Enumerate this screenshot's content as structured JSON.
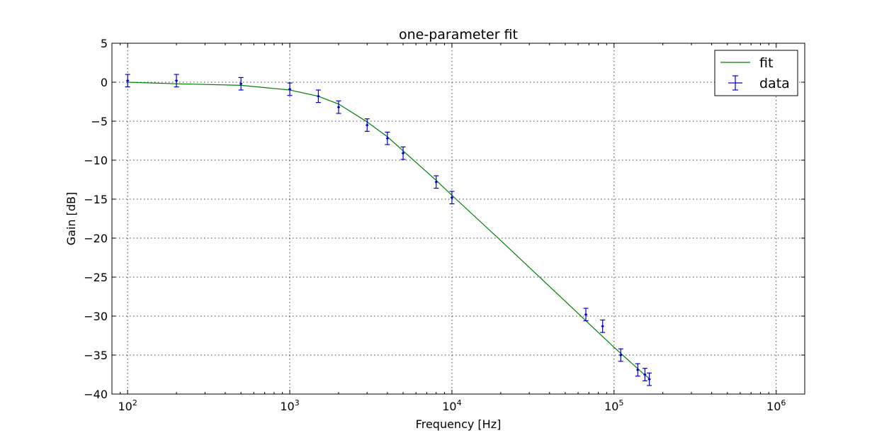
{
  "chart_data": {
    "type": "line",
    "title": "one-parameter fit",
    "xlabel": "Frequency [Hz]",
    "ylabel": "Gain [dB]",
    "xscale": "log",
    "xlim": [
      80,
      1500000
    ],
    "ylim": [
      -40,
      5
    ],
    "x_ticks": [
      100,
      1000,
      10000,
      100000,
      1000000
    ],
    "x_tick_labels": [
      {
        "base": "10",
        "exp": "2"
      },
      {
        "base": "10",
        "exp": "3"
      },
      {
        "base": "10",
        "exp": "4"
      },
      {
        "base": "10",
        "exp": "5"
      },
      {
        "base": "10",
        "exp": "6"
      }
    ],
    "y_ticks": [
      5,
      0,
      -5,
      -10,
      -15,
      -20,
      -25,
      -30,
      -35,
      -40
    ],
    "y_tick_labels": [
      "5",
      "0",
      "−5",
      "−10",
      "−15",
      "−20",
      "−25",
      "−30",
      "−35",
      "−40"
    ],
    "grid": true,
    "legend": {
      "position": "top-right",
      "entries": [
        {
          "label": "fit",
          "kind": "line",
          "color": "#008000"
        },
        {
          "label": "data",
          "kind": "errorbar",
          "color": "#0000cc"
        }
      ]
    },
    "series": [
      {
        "name": "fit",
        "kind": "line",
        "color": "#008000",
        "x": [
          100,
          200,
          500,
          1000,
          1500,
          2000,
          3000,
          4000,
          5000,
          8000,
          10000,
          20000,
          50000,
          100000,
          150000,
          165000
        ],
        "y": [
          0.0,
          -0.2,
          -0.4,
          -1.0,
          -1.8,
          -2.8,
          -5.1,
          -7.0,
          -8.8,
          -12.6,
          -14.5,
          -20.3,
          -28.1,
          -34.0,
          -37.3,
          -38.0
        ]
      },
      {
        "name": "data",
        "kind": "errorbar",
        "color": "#0000cc",
        "x": [
          100,
          200,
          500,
          1000,
          1500,
          2000,
          3000,
          4000,
          5000,
          8000,
          10000,
          67000,
          85000,
          110000,
          140000,
          155000,
          165000
        ],
        "y": [
          0.2,
          0.2,
          -0.2,
          -0.9,
          -1.8,
          -3.2,
          -5.5,
          -7.2,
          -9.1,
          -12.8,
          -14.8,
          -29.8,
          -31.3,
          -35.0,
          -36.9,
          -37.5,
          -38.1
        ],
        "yerr": [
          0.8,
          0.8,
          0.8,
          0.8,
          0.8,
          0.8,
          0.8,
          0.8,
          0.8,
          0.8,
          0.8,
          0.8,
          0.8,
          0.8,
          0.8,
          0.8,
          0.8
        ],
        "xerr_rel": 0.02
      }
    ]
  }
}
